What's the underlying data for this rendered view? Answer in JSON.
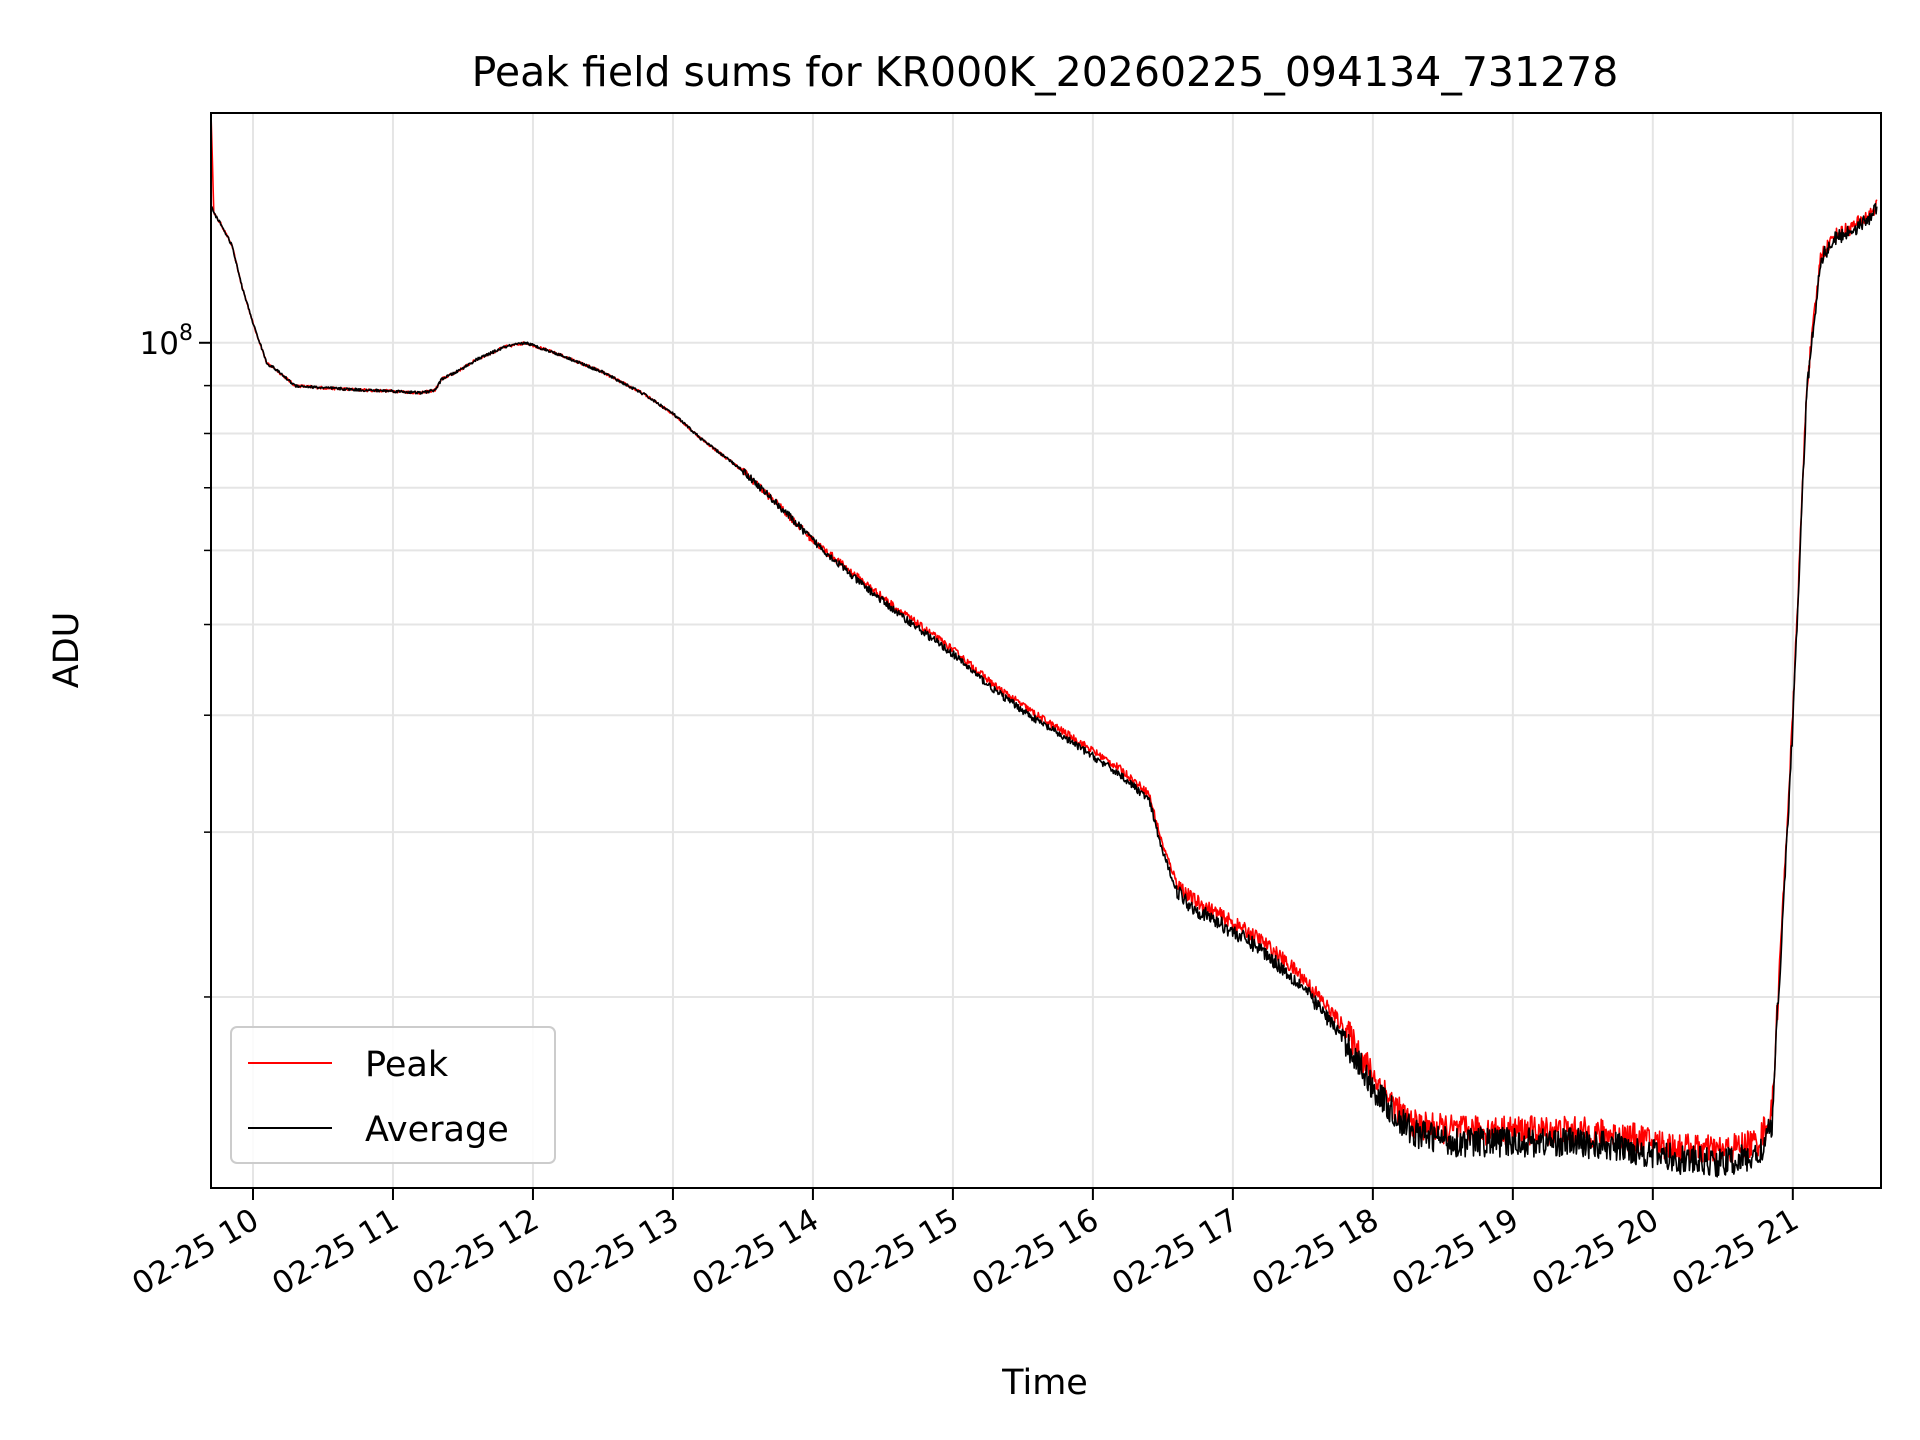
{
  "chart_data": {
    "type": "line",
    "title": "Peak field sums for KR000K_20260225_094134_731278",
    "xlabel": "Time",
    "ylabel": "ADU",
    "x_ticks": [
      "02-25 10",
      "02-25 11",
      "02-25 12",
      "02-25 13",
      "02-25 14",
      "02-25 15",
      "02-25 16",
      "02-25 17",
      "02-25 18",
      "02-25 19",
      "02-25 20",
      "02-25 21"
    ],
    "x_tick_hours": [
      10,
      11,
      12,
      13,
      14,
      15,
      16,
      17,
      18,
      19,
      20,
      21
    ],
    "xlim_hours": [
      9.7,
      21.63
    ],
    "y_scale": "log",
    "ylim": [
      12500000,
      176000000
    ],
    "y_major_tick": {
      "value": 100000000,
      "base": "10",
      "exp": "8"
    },
    "y_minor_ticks": [
      20000000,
      30000000,
      40000000,
      50000000,
      60000000,
      70000000,
      80000000,
      90000000
    ],
    "grid": true,
    "legend_position": "lower-left",
    "series": [
      {
        "name": "Peak",
        "color": "#ff0000",
        "x_hours": [
          9.7,
          9.72,
          9.74,
          9.77,
          9.85,
          9.92,
          10.0,
          10.1,
          10.15,
          10.3,
          10.5,
          10.8,
          11.0,
          11.2,
          11.3,
          11.35,
          11.45,
          11.6,
          11.8,
          11.95,
          12.2,
          12.5,
          12.8,
          13.0,
          13.2,
          13.5,
          13.8,
          14.0,
          14.3,
          14.6,
          15.0,
          15.3,
          15.6,
          15.9,
          16.2,
          16.4,
          16.5,
          16.6,
          16.7,
          16.9,
          17.2,
          17.5,
          17.8,
          18.0,
          18.2,
          18.3,
          18.6,
          19.0,
          19.4,
          19.8,
          20.0,
          20.2,
          20.5,
          20.75,
          20.85,
          21.0,
          21.1,
          21.2,
          21.3,
          21.5,
          21.6
        ],
        "values": [
          176000000,
          138000000,
          136000000,
          134000000,
          127000000,
          115000000,
          105000000,
          95000000,
          94000000,
          90000000,
          89500000,
          89000000,
          88800000,
          88400000,
          89000000,
          91500000,
          93000000,
          96000000,
          99000000,
          100000000,
          97000000,
          93000000,
          88000000,
          84000000,
          79000000,
          73000000,
          66000000,
          61500000,
          56500000,
          52000000,
          47000000,
          43000000,
          40000000,
          37500000,
          35000000,
          33000000,
          29000000,
          26500000,
          25500000,
          24500000,
          23000000,
          21000000,
          18500000,
          16500000,
          15000000,
          14600000,
          14400000,
          14400000,
          14400000,
          14200000,
          14000000,
          13800000,
          13700000,
          14000000,
          15000000,
          40000000,
          90000000,
          124000000,
          130000000,
          135000000,
          140000000
        ]
      },
      {
        "name": "Average",
        "color": "#000000",
        "x_hours": [
          9.7,
          9.72,
          9.74,
          9.77,
          9.85,
          9.92,
          10.0,
          10.1,
          10.15,
          10.3,
          10.5,
          10.8,
          11.0,
          11.2,
          11.3,
          11.35,
          11.45,
          11.6,
          11.8,
          11.95,
          12.2,
          12.5,
          12.8,
          13.0,
          13.2,
          13.5,
          13.8,
          14.0,
          14.3,
          14.6,
          15.0,
          15.3,
          15.6,
          15.9,
          16.2,
          16.4,
          16.5,
          16.6,
          16.7,
          16.9,
          17.2,
          17.5,
          17.8,
          18.0,
          18.2,
          18.3,
          18.6,
          19.0,
          19.4,
          19.8,
          20.0,
          20.2,
          20.5,
          20.75,
          20.85,
          21.0,
          21.1,
          21.2,
          21.3,
          21.5,
          21.6
        ],
        "values": [
          140000000,
          138000000,
          136000000,
          134000000,
          127000000,
          115000000,
          105000000,
          95000000,
          94000000,
          90000000,
          89500000,
          89000000,
          88800000,
          88400000,
          89000000,
          91500000,
          93000000,
          96000000,
          99000000,
          100000000,
          97000000,
          93000000,
          88000000,
          84000000,
          79000000,
          73000000,
          66000000,
          61500000,
          56000000,
          51500000,
          46500000,
          42500000,
          39500000,
          37000000,
          34500000,
          32500000,
          28500000,
          26000000,
          25000000,
          24000000,
          22500000,
          20500000,
          18000000,
          16000000,
          14700000,
          14300000,
          14000000,
          14000000,
          14000000,
          13800000,
          13600000,
          13400000,
          13300000,
          13500000,
          14500000,
          39000000,
          89000000,
          123000000,
          129000000,
          134000000,
          139000000
        ]
      }
    ]
  }
}
